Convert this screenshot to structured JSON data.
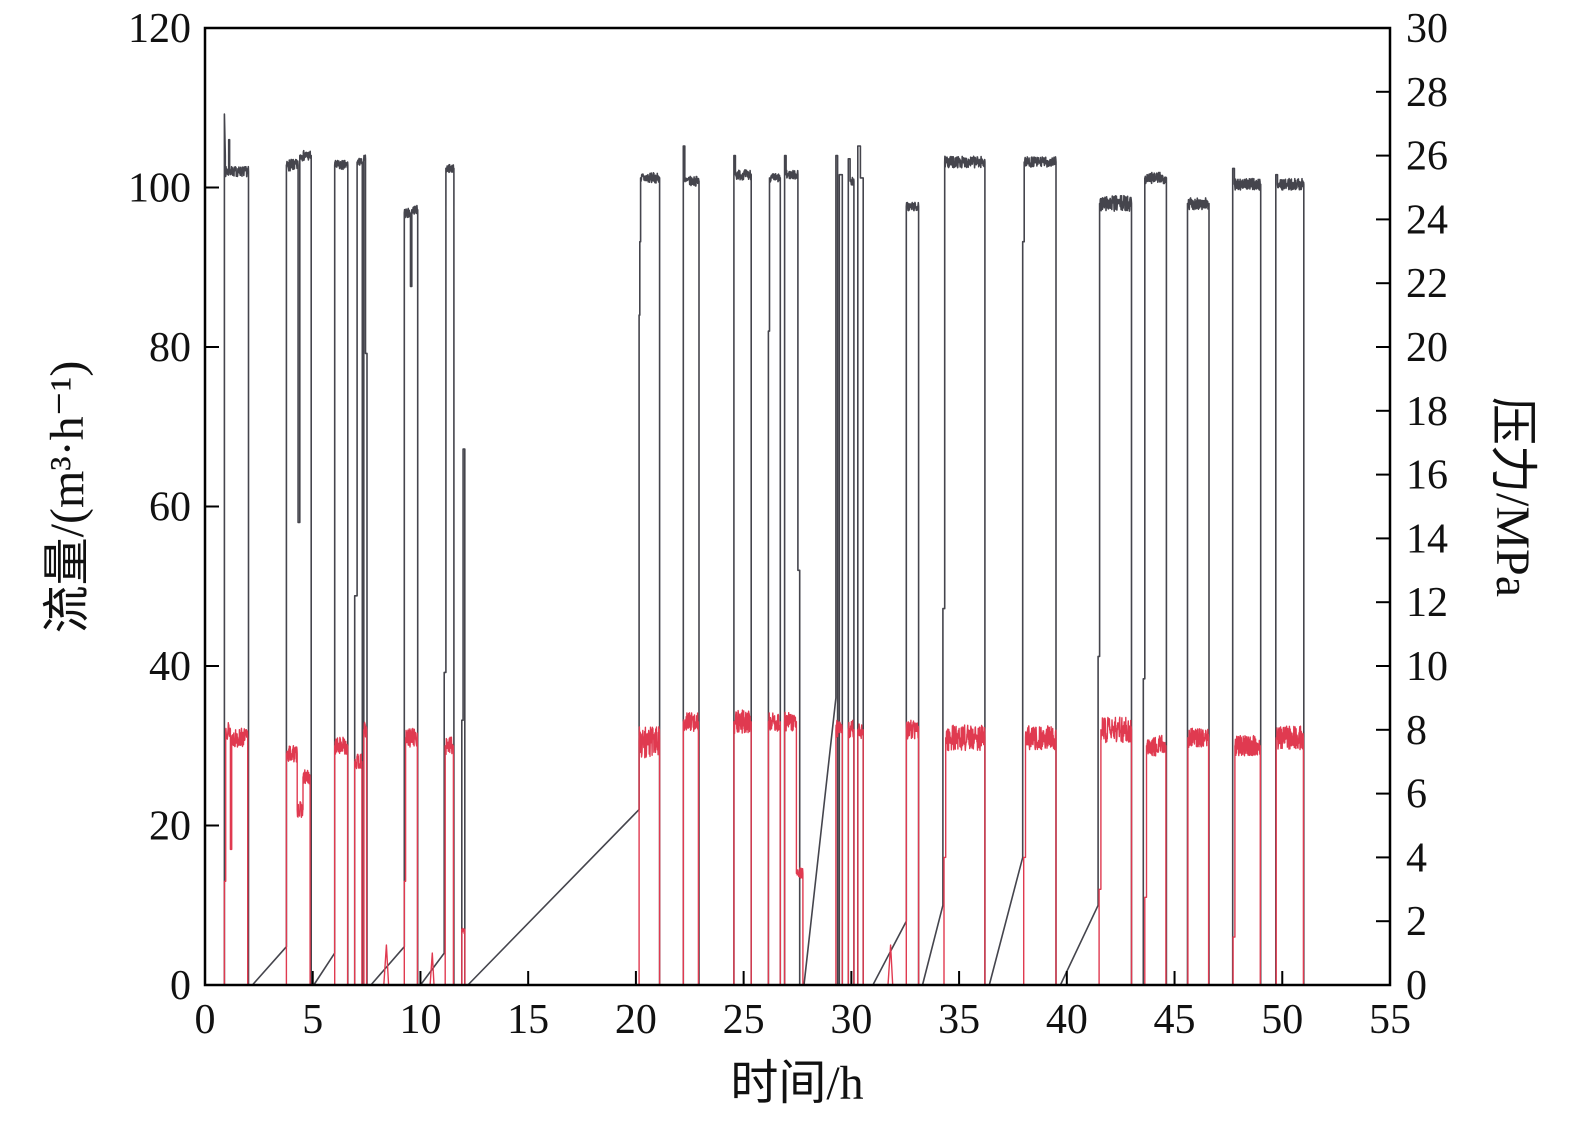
{
  "figure": {
    "xlabel": "时间/h",
    "ylabel_left": "流量/(m³·h⁻¹)",
    "ylabel_right": "压力/MPa"
  },
  "style": {
    "background": "#ffffff",
    "axis_color": "#000000",
    "tick_label_color": "#111111",
    "pressure_color": "#45454d",
    "flow_color": "#e03a50"
  },
  "chart_data": {
    "type": "line",
    "title": "",
    "xlabel": "时间/h",
    "ylabel_left": "流量/(m³·h⁻¹)",
    "ylabel_right": "压力/MPa",
    "xlim": [
      0,
      55
    ],
    "ylim_left": [
      0,
      120
    ],
    "ylim_right": [
      0,
      30
    ],
    "x_ticks": [
      0,
      5,
      10,
      15,
      20,
      25,
      30,
      35,
      40,
      45,
      50,
      55
    ],
    "y_ticks_left": [
      0,
      20,
      40,
      60,
      80,
      100,
      120
    ],
    "y_ticks_right": [
      0,
      2,
      4,
      6,
      8,
      10,
      12,
      14,
      16,
      18,
      20,
      22,
      24,
      26,
      28,
      30
    ],
    "grid": false,
    "legend": "none",
    "path_format": "[time_h, value, noise_amplitude?] ; equal consecutive times = vertical edge",
    "series": [
      {
        "name": "压力 (dark trace, right axis)",
        "axis": "right",
        "unit": "MPa",
        "color": "#45454d",
        "stroke_width": 1.6,
        "seed": 7,
        "path": [
          [
            0.9,
            0
          ],
          [
            0.9,
            27.3
          ],
          [
            0.94,
            26.0
          ],
          [
            0.94,
            25.5,
            0.16
          ],
          [
            1.1,
            25.5
          ],
          [
            1.1,
            26.5
          ],
          [
            1.14,
            26.5
          ],
          [
            1.14,
            25.5,
            0.16
          ],
          [
            2.02,
            25.5
          ],
          [
            2.02,
            0
          ],
          [
            2.2,
            0
          ],
          [
            3.78,
            1.2
          ],
          [
            3.78,
            25.7,
            0.18
          ],
          [
            4.32,
            25.7
          ],
          [
            4.32,
            14.5
          ],
          [
            4.4,
            14.5
          ],
          [
            4.4,
            26.0,
            0.16
          ],
          [
            4.93,
            26.0
          ],
          [
            4.93,
            0
          ],
          [
            5.05,
            0
          ],
          [
            6.02,
            1.0
          ],
          [
            6.02,
            25.7,
            0.15
          ],
          [
            6.63,
            25.7
          ],
          [
            6.63,
            0
          ],
          [
            6.95,
            0
          ],
          [
            6.95,
            12.2
          ],
          [
            7.06,
            12.2
          ],
          [
            7.06,
            25.8,
            0.12
          ],
          [
            7.3,
            25.8
          ],
          [
            7.3,
            0
          ],
          [
            7.37,
            0
          ],
          [
            7.37,
            25.9,
            0.12
          ],
          [
            7.45,
            25.9
          ],
          [
            7.45,
            19.8
          ],
          [
            7.52,
            19.8
          ],
          [
            7.52,
            0
          ],
          [
            7.7,
            0
          ],
          [
            9.25,
            1.2
          ],
          [
            9.25,
            24.2,
            0.15
          ],
          [
            9.54,
            24.2
          ],
          [
            9.54,
            21.9
          ],
          [
            9.6,
            21.9
          ],
          [
            9.6,
            24.3,
            0.14
          ],
          [
            9.87,
            24.3
          ],
          [
            9.87,
            0
          ],
          [
            10.0,
            0
          ],
          [
            11.1,
            1.0
          ],
          [
            11.1,
            9.8
          ],
          [
            11.18,
            9.8
          ],
          [
            11.18,
            25.6,
            0.13
          ],
          [
            11.55,
            25.6
          ],
          [
            11.55,
            0
          ],
          [
            11.92,
            0
          ],
          [
            11.92,
            8.3
          ],
          [
            11.98,
            8.3
          ],
          [
            11.98,
            16.8
          ],
          [
            12.06,
            16.8
          ],
          [
            12.06,
            0
          ],
          [
            12.2,
            0
          ],
          [
            20.15,
            5.5
          ],
          [
            20.15,
            21.0
          ],
          [
            20.18,
            21.0
          ],
          [
            20.18,
            23.3
          ],
          [
            20.22,
            23.3
          ],
          [
            20.22,
            25.3,
            0.16
          ],
          [
            21.1,
            25.3
          ],
          [
            21.1,
            0
          ],
          [
            22.2,
            0
          ],
          [
            22.2,
            26.3
          ],
          [
            22.27,
            26.3
          ],
          [
            22.27,
            25.2,
            0.15
          ],
          [
            22.93,
            25.2
          ],
          [
            22.93,
            0
          ],
          [
            24.55,
            0
          ],
          [
            24.55,
            26.0
          ],
          [
            24.62,
            26.0
          ],
          [
            24.62,
            25.4,
            0.16
          ],
          [
            25.35,
            25.4
          ],
          [
            25.35,
            0
          ],
          [
            26.15,
            0
          ],
          [
            26.15,
            20.5
          ],
          [
            26.2,
            20.5
          ],
          [
            26.2,
            25.3,
            0.14
          ],
          [
            26.7,
            25.3
          ],
          [
            26.7,
            0
          ],
          [
            26.9,
            0
          ],
          [
            26.9,
            26.0
          ],
          [
            26.97,
            26.0
          ],
          [
            26.97,
            25.4,
            0.14
          ],
          [
            27.52,
            25.4
          ],
          [
            27.52,
            13.0
          ],
          [
            27.6,
            13.0
          ],
          [
            27.6,
            0
          ],
          [
            27.8,
            0
          ],
          [
            29.28,
            9.0
          ],
          [
            29.28,
            26.0
          ],
          [
            29.36,
            26.0
          ],
          [
            29.36,
            0
          ],
          [
            29.44,
            0
          ],
          [
            29.44,
            25.4
          ],
          [
            29.58,
            25.4
          ],
          [
            29.58,
            0
          ],
          [
            29.86,
            0
          ],
          [
            29.86,
            25.9
          ],
          [
            29.94,
            25.9
          ],
          [
            29.94,
            25.2,
            0.14
          ],
          [
            30.12,
            25.2
          ],
          [
            30.12,
            0
          ],
          [
            30.3,
            0
          ],
          [
            30.3,
            26.3
          ],
          [
            30.42,
            26.3
          ],
          [
            30.42,
            25.3
          ],
          [
            30.55,
            25.3
          ],
          [
            30.55,
            0
          ],
          [
            31.0,
            0
          ],
          [
            32.55,
            2.0
          ],
          [
            32.55,
            24.4,
            0.14
          ],
          [
            33.12,
            24.4
          ],
          [
            33.12,
            0
          ],
          [
            33.3,
            0
          ],
          [
            34.25,
            2.5
          ],
          [
            34.25,
            11.8
          ],
          [
            34.33,
            11.8
          ],
          [
            34.33,
            25.8,
            0.18
          ],
          [
            36.2,
            25.8
          ],
          [
            36.2,
            0
          ],
          [
            36.4,
            0
          ],
          [
            37.95,
            4.0
          ],
          [
            37.95,
            23.3
          ],
          [
            38.02,
            23.3
          ],
          [
            38.02,
            25.8,
            0.16
          ],
          [
            39.5,
            25.8
          ],
          [
            39.5,
            0
          ],
          [
            39.7,
            0
          ],
          [
            41.45,
            2.5
          ],
          [
            41.45,
            10.3
          ],
          [
            41.52,
            10.3
          ],
          [
            41.52,
            24.5,
            0.25
          ],
          [
            43.0,
            24.5
          ],
          [
            43.0,
            0
          ],
          [
            43.55,
            0
          ],
          [
            43.55,
            9.6
          ],
          [
            43.62,
            9.6
          ],
          [
            43.62,
            25.3,
            0.18
          ],
          [
            44.62,
            25.3
          ],
          [
            44.62,
            0
          ],
          [
            45.6,
            0
          ],
          [
            45.6,
            24.5,
            0.2
          ],
          [
            46.6,
            24.5
          ],
          [
            46.6,
            0
          ],
          [
            47.7,
            0
          ],
          [
            47.7,
            25.6
          ],
          [
            47.78,
            25.6
          ],
          [
            47.78,
            25.1,
            0.18
          ],
          [
            49.0,
            25.1
          ],
          [
            49.0,
            0
          ],
          [
            49.7,
            0
          ],
          [
            49.7,
            25.4
          ],
          [
            49.78,
            25.4
          ],
          [
            49.78,
            25.1,
            0.18
          ],
          [
            51.0,
            25.1
          ],
          [
            51.0,
            0
          ]
        ]
      },
      {
        "name": "流量 (red trace, left axis)",
        "axis": "left",
        "unit": "m³·h⁻¹",
        "color": "#e03a50",
        "stroke_width": 1.4,
        "seed": 13,
        "path": [
          [
            0.9,
            0
          ],
          [
            0.9,
            13.0
          ],
          [
            0.96,
            13.0
          ],
          [
            0.96,
            32.0,
            1.2
          ],
          [
            1.18,
            32.0
          ],
          [
            1.18,
            17.0
          ],
          [
            1.24,
            17.0
          ],
          [
            1.24,
            31.0,
            1.2
          ],
          [
            1.98,
            31.0
          ],
          [
            1.98,
            0
          ],
          [
            3.78,
            0
          ],
          [
            3.78,
            29.0,
            1.1
          ],
          [
            4.28,
            29.0
          ],
          [
            4.28,
            22.0,
            1.0
          ],
          [
            4.55,
            22.0
          ],
          [
            4.55,
            26.0,
            1.0
          ],
          [
            4.88,
            26.0
          ],
          [
            4.88,
            0
          ],
          [
            6.02,
            0
          ],
          [
            6.02,
            30.0,
            1.1
          ],
          [
            6.62,
            30.0
          ],
          [
            6.62,
            0
          ],
          [
            6.95,
            0
          ],
          [
            6.95,
            28.0,
            1.0
          ],
          [
            7.28,
            28.0
          ],
          [
            7.28,
            0
          ],
          [
            7.37,
            0
          ],
          [
            7.37,
            32.0,
            1.0
          ],
          [
            7.5,
            32.0
          ],
          [
            7.5,
            0
          ],
          [
            8.3,
            0
          ],
          [
            8.42,
            5.0
          ],
          [
            8.52,
            0
          ],
          [
            9.25,
            0
          ],
          [
            9.25,
            13.0
          ],
          [
            9.31,
            13.0
          ],
          [
            9.31,
            31.0,
            1.2
          ],
          [
            9.86,
            31.0
          ],
          [
            9.86,
            0
          ],
          [
            10.45,
            0
          ],
          [
            10.55,
            4.0
          ],
          [
            10.63,
            0
          ],
          [
            11.15,
            0
          ],
          [
            11.15,
            30.0,
            1.1
          ],
          [
            11.53,
            30.0
          ],
          [
            11.53,
            0
          ],
          [
            11.92,
            0
          ],
          [
            11.92,
            7.0,
            0.6
          ],
          [
            12.06,
            7.0
          ],
          [
            12.06,
            0
          ],
          [
            20.15,
            0
          ],
          [
            20.15,
            30.5,
            2.0
          ],
          [
            21.1,
            30.5
          ],
          [
            21.1,
            0
          ],
          [
            22.2,
            0
          ],
          [
            22.2,
            33.0,
            1.2
          ],
          [
            22.9,
            33.0
          ],
          [
            22.9,
            0
          ],
          [
            24.55,
            0
          ],
          [
            24.55,
            33.0,
            1.5
          ],
          [
            25.35,
            33.0
          ],
          [
            25.35,
            0
          ],
          [
            26.15,
            0
          ],
          [
            26.15,
            33.0,
            1.2
          ],
          [
            26.7,
            33.0
          ],
          [
            26.7,
            0
          ],
          [
            26.9,
            0
          ],
          [
            26.9,
            33.0,
            1.2
          ],
          [
            27.45,
            33.0
          ],
          [
            27.45,
            14.0,
            0.7
          ],
          [
            27.75,
            14.0
          ],
          [
            27.75,
            0
          ],
          [
            29.28,
            0
          ],
          [
            29.28,
            32.0,
            1.2
          ],
          [
            29.58,
            32.0
          ],
          [
            29.58,
            0
          ],
          [
            29.86,
            0
          ],
          [
            29.86,
            32.0,
            1.2
          ],
          [
            30.12,
            32.0
          ],
          [
            30.12,
            0
          ],
          [
            30.3,
            0
          ],
          [
            30.3,
            32.0,
            1.1
          ],
          [
            30.55,
            32.0
          ],
          [
            30.55,
            0
          ],
          [
            31.7,
            0
          ],
          [
            31.82,
            5.0
          ],
          [
            31.92,
            0
          ],
          [
            32.55,
            0
          ],
          [
            32.55,
            32.0,
            1.2
          ],
          [
            33.12,
            32.0
          ],
          [
            33.12,
            0
          ],
          [
            34.3,
            0
          ],
          [
            34.3,
            16.0
          ],
          [
            34.38,
            16.0
          ],
          [
            34.38,
            31.0,
            1.6
          ],
          [
            36.2,
            31.0
          ],
          [
            36.2,
            0
          ],
          [
            38.0,
            0
          ],
          [
            38.0,
            16.0
          ],
          [
            38.08,
            16.0
          ],
          [
            38.08,
            31.0,
            1.5
          ],
          [
            39.5,
            31.0
          ],
          [
            39.5,
            0
          ],
          [
            41.5,
            0
          ],
          [
            41.5,
            12.0
          ],
          [
            41.58,
            12.0
          ],
          [
            41.58,
            32.0,
            1.6
          ],
          [
            43.0,
            32.0
          ],
          [
            43.0,
            0
          ],
          [
            43.62,
            0
          ],
          [
            43.62,
            11.0
          ],
          [
            43.7,
            11.0
          ],
          [
            43.7,
            30.0,
            1.3
          ],
          [
            44.6,
            30.0
          ],
          [
            44.6,
            0
          ],
          [
            45.62,
            0
          ],
          [
            45.62,
            31.0,
            1.2
          ],
          [
            46.58,
            31.0
          ],
          [
            46.58,
            0
          ],
          [
            47.72,
            0
          ],
          [
            47.72,
            6.0
          ],
          [
            47.8,
            6.0
          ],
          [
            47.8,
            30.0,
            1.3
          ],
          [
            48.98,
            30.0
          ],
          [
            48.98,
            0
          ],
          [
            49.72,
            0
          ],
          [
            49.72,
            31.0,
            1.5
          ],
          [
            50.98,
            31.0
          ],
          [
            50.98,
            0
          ]
        ]
      }
    ]
  }
}
